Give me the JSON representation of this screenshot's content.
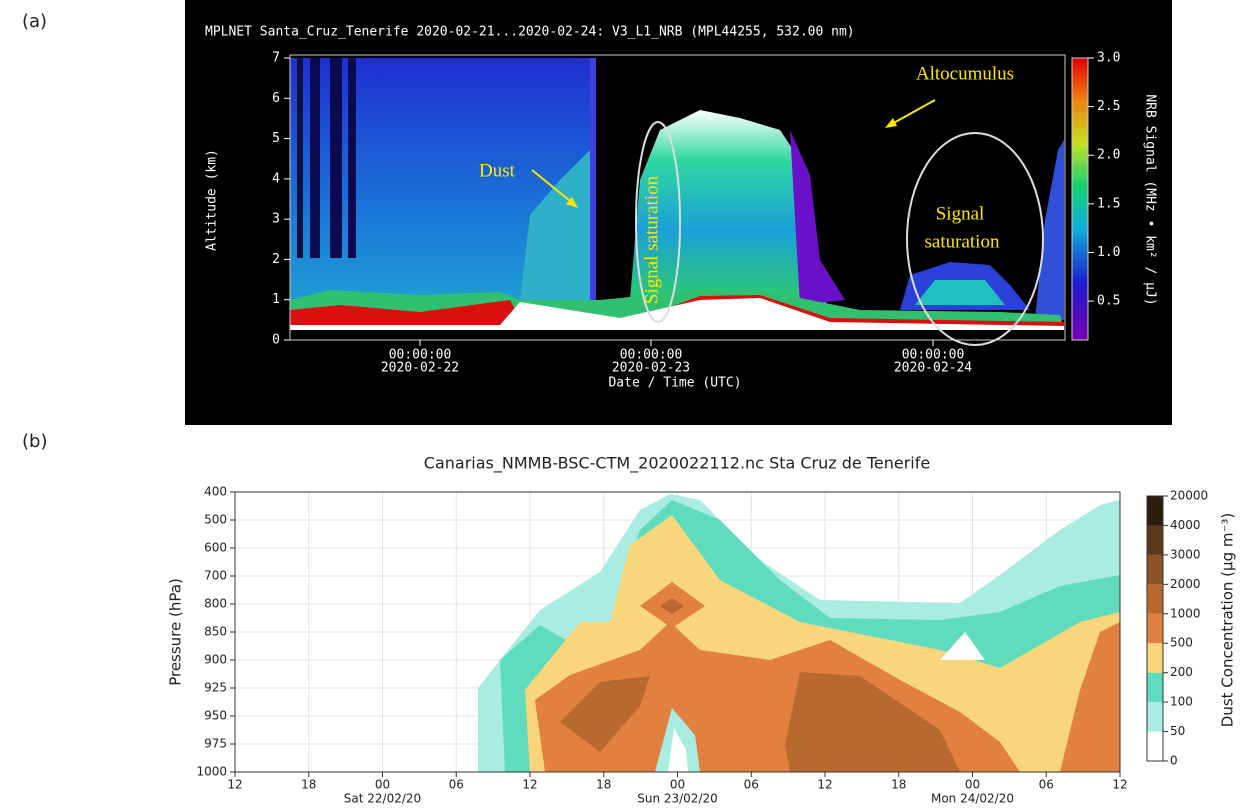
{
  "chart_data": [
    {
      "type": "lidar",
      "panel_label": "(a)",
      "title": "MPLNET Santa_Cruz_Tenerife 2020-02-21...2020-02-24:  V3_L1_NRB  (MPL44255, 532.00 nm)",
      "xlabel": "Date / Time (UTC)",
      "ylabel": "Altitude (km)",
      "ylim": [
        0,
        7
      ],
      "yticks": [
        0,
        1,
        2,
        3,
        4,
        5,
        6,
        7
      ],
      "x_tick_labels": [
        [
          "00:00:00",
          "2020-02-22"
        ],
        [
          "00:00:00",
          "2020-02-23"
        ],
        [
          "00:00:00",
          "2020-02-24"
        ]
      ],
      "colorbar": {
        "label": "NRB Signal (MHz • km² / μJ)",
        "lim": [
          0.1,
          3.0
        ],
        "ticks": [
          0.5,
          {
            "value": 1,
            "label": "1.0"
          },
          1.5,
          {
            "value": 2,
            "label": "2.0"
          },
          2.5,
          {
            "value": 3,
            "label": "3.0"
          }
        ]
      },
      "annotations": [
        "Altocumulus",
        "Dust",
        "Signal saturation",
        "Signal",
        "saturation"
      ]
    },
    {
      "type": "contour",
      "panel_label": "(b)",
      "title": "Canarias_NMMB-BSC-CTM_2020022112.nc    Sta Cruz de Tenerife",
      "ylabel": "Pressure (hPa)",
      "y_levels": [
        400,
        500,
        600,
        700,
        800,
        850,
        900,
        925,
        950,
        975,
        1000
      ],
      "x_tick_labels": [
        "12",
        "18",
        "00",
        "06",
        "12",
        "18",
        "00",
        "06",
        "12",
        "18",
        "00",
        "06",
        "12"
      ],
      "x_day_labels": [
        "Sat 22/02/20",
        "Sun 23/02/20",
        "Mon 24/02/20"
      ],
      "colorbar": {
        "label": "Dust Concentration (μg m⁻³)",
        "levels": [
          0,
          50,
          100,
          200,
          500,
          1000,
          2000,
          3000,
          4000,
          20000
        ],
        "colors": [
          "#ffffff",
          "#a9ece1",
          "#5edcbd",
          "#f9d67c",
          "#e2803f",
          "#b86a2e",
          "#8b5226",
          "#5a3819",
          "#2c1d0e"
        ]
      }
    }
  ]
}
